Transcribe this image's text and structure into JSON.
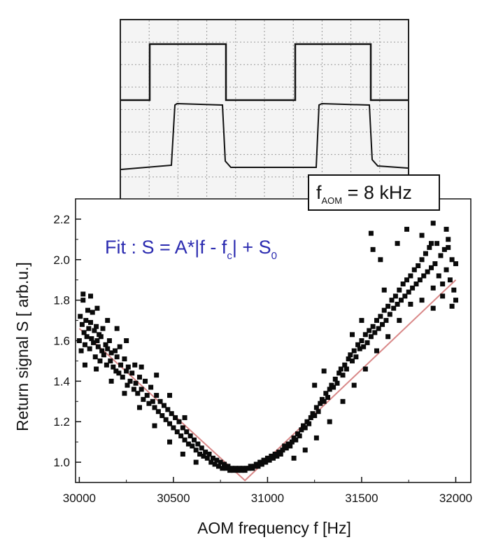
{
  "chart_data": {
    "type": "scatter",
    "xlabel": "AOM frequency f  [Hz]",
    "ylabel": "Return signal S   [ arb.u.]",
    "xlim": [
      29980,
      32080
    ],
    "ylim": [
      0.9,
      2.3
    ],
    "x_ticks": [
      30000,
      30500,
      31000,
      31500,
      32000
    ],
    "y_ticks": [
      1.0,
      1.2,
      1.4,
      1.6,
      1.8,
      2.0,
      2.2
    ],
    "x_tick_labels": [
      "30000",
      "30500",
      "31000",
      "31500",
      "32000"
    ],
    "y_tick_labels": [
      "1.0",
      "1.2",
      "1.4",
      "1.6",
      "1.8",
      "2.0",
      "2.2"
    ],
    "marker_color": "#0a0a0a",
    "fit_color": "#d98888",
    "fit": {
      "label_main": "Fit : S = A*|f - f",
      "label_sub": "c",
      "label_rest": "| + S",
      "label_sub2": "0",
      "center_f": 30880,
      "S0": 0.91,
      "left_end": {
        "x": 30000,
        "y": 1.66
      },
      "right_end": {
        "x": 32000,
        "y": 1.9
      }
    },
    "series": [
      {
        "points": [
          [
            30000,
            1.6
          ],
          [
            30005,
            1.72
          ],
          [
            30010,
            1.55
          ],
          [
            30015,
            1.68
          ],
          [
            30020,
            1.8
          ],
          [
            30025,
            1.64
          ],
          [
            30030,
            1.58
          ],
          [
            30035,
            1.7
          ],
          [
            30040,
            1.62
          ],
          [
            30045,
            1.75
          ],
          [
            30050,
            1.66
          ],
          [
            30055,
            1.56
          ],
          [
            30060,
            1.69
          ],
          [
            30065,
            1.61
          ],
          [
            30070,
            1.74
          ],
          [
            30075,
            1.59
          ],
          [
            30080,
            1.65
          ],
          [
            30085,
            1.52
          ],
          [
            30090,
            1.67
          ],
          [
            30095,
            1.6
          ],
          [
            30100,
            1.57
          ],
          [
            30105,
            1.63
          ],
          [
            30110,
            1.5
          ],
          [
            30115,
            1.62
          ],
          [
            30120,
            1.55
          ],
          [
            30125,
            1.66
          ],
          [
            30130,
            1.53
          ],
          [
            30140,
            1.58
          ],
          [
            30145,
            1.48
          ],
          [
            30150,
            1.56
          ],
          [
            30160,
            1.6
          ],
          [
            30165,
            1.5
          ],
          [
            30170,
            1.54
          ],
          [
            30180,
            1.47
          ],
          [
            30190,
            1.55
          ],
          [
            30195,
            1.45
          ],
          [
            30200,
            1.52
          ],
          [
            30210,
            1.44
          ],
          [
            30215,
            1.57
          ],
          [
            30220,
            1.48
          ],
          [
            30230,
            1.42
          ],
          [
            30240,
            1.51
          ],
          [
            30250,
            1.45
          ],
          [
            30255,
            1.38
          ],
          [
            30260,
            1.47
          ],
          [
            30270,
            1.4
          ],
          [
            30280,
            1.44
          ],
          [
            30290,
            1.36
          ],
          [
            30295,
            1.48
          ],
          [
            30300,
            1.39
          ],
          [
            30310,
            1.34
          ],
          [
            30320,
            1.42
          ],
          [
            30330,
            1.36
          ],
          [
            30340,
            1.31
          ],
          [
            30350,
            1.4
          ],
          [
            30360,
            1.33
          ],
          [
            30370,
            1.29
          ],
          [
            30380,
            1.37
          ],
          [
            30390,
            1.3
          ],
          [
            30400,
            1.27
          ],
          [
            30410,
            1.33
          ],
          [
            30420,
            1.25
          ],
          [
            30430,
            1.3
          ],
          [
            30440,
            1.23
          ],
          [
            30450,
            1.28
          ],
          [
            30460,
            1.21
          ],
          [
            30470,
            1.26
          ],
          [
            30480,
            1.19
          ],
          [
            30490,
            1.24
          ],
          [
            30500,
            1.17
          ],
          [
            30510,
            1.22
          ],
          [
            30520,
            1.15
          ],
          [
            30530,
            1.2
          ],
          [
            30540,
            1.13
          ],
          [
            30550,
            1.17
          ],
          [
            30560,
            1.11
          ],
          [
            30570,
            1.15
          ],
          [
            30580,
            1.09
          ],
          [
            30590,
            1.13
          ],
          [
            30600,
            1.08
          ],
          [
            30610,
            1.11
          ],
          [
            30620,
            1.06
          ],
          [
            30630,
            1.09
          ],
          [
            30640,
            1.04
          ],
          [
            30650,
            1.07
          ],
          [
            30660,
            1.03
          ],
          [
            30670,
            1.05
          ],
          [
            30680,
            1.02
          ],
          [
            30690,
            1.04
          ],
          [
            30700,
            1.0
          ],
          [
            30710,
            1.02
          ],
          [
            30720,
            0.99
          ],
          [
            30730,
            1.01
          ],
          [
            30740,
            0.98
          ],
          [
            30750,
            1.0
          ],
          [
            30760,
            0.97
          ],
          [
            30770,
            0.99
          ],
          [
            30780,
            0.97
          ],
          [
            30790,
            0.98
          ],
          [
            30800,
            0.96
          ],
          [
            30810,
            0.97
          ],
          [
            30820,
            0.96
          ],
          [
            30830,
            0.97
          ],
          [
            30840,
            0.96
          ],
          [
            30850,
            0.97
          ],
          [
            30860,
            0.96
          ],
          [
            30870,
            0.97
          ],
          [
            30880,
            0.96
          ],
          [
            30890,
            0.97
          ],
          [
            30900,
            0.97
          ],
          [
            30910,
            0.98
          ],
          [
            30920,
            0.97
          ],
          [
            30930,
            0.98
          ],
          [
            30940,
            0.99
          ],
          [
            30950,
            0.98
          ],
          [
            30960,
            1.0
          ],
          [
            30970,
            0.99
          ],
          [
            30980,
            1.01
          ],
          [
            30990,
            1.0
          ],
          [
            31000,
            1.02
          ],
          [
            31010,
            1.01
          ],
          [
            31020,
            1.03
          ],
          [
            31030,
            1.02
          ],
          [
            31040,
            1.04
          ],
          [
            31050,
            1.03
          ],
          [
            31060,
            1.05
          ],
          [
            31070,
            1.04
          ],
          [
            31080,
            1.06
          ],
          [
            31090,
            1.08
          ],
          [
            31100,
            1.07
          ],
          [
            31110,
            1.09
          ],
          [
            31120,
            1.08
          ],
          [
            31130,
            1.1
          ],
          [
            31140,
            1.12
          ],
          [
            31150,
            1.11
          ],
          [
            31160,
            1.14
          ],
          [
            31170,
            1.13
          ],
          [
            31180,
            1.16
          ],
          [
            31190,
            1.18
          ],
          [
            31200,
            1.17
          ],
          [
            31210,
            1.2
          ],
          [
            31220,
            1.19
          ],
          [
            31230,
            1.22
          ],
          [
            31240,
            1.24
          ],
          [
            31250,
            1.23
          ],
          [
            31260,
            1.27
          ],
          [
            31270,
            1.25
          ],
          [
            31280,
            1.29
          ],
          [
            31290,
            1.31
          ],
          [
            31300,
            1.3
          ],
          [
            31310,
            1.34
          ],
          [
            31320,
            1.32
          ],
          [
            31330,
            1.36
          ],
          [
            31340,
            1.38
          ],
          [
            31350,
            1.37
          ],
          [
            31360,
            1.41
          ],
          [
            31370,
            1.39
          ],
          [
            31380,
            1.44
          ],
          [
            31390,
            1.46
          ],
          [
            31400,
            1.43
          ],
          [
            31410,
            1.48
          ],
          [
            31420,
            1.46
          ],
          [
            31430,
            1.51
          ],
          [
            31440,
            1.53
          ],
          [
            31450,
            1.5
          ],
          [
            31460,
            1.55
          ],
          [
            31470,
            1.52
          ],
          [
            31480,
            1.58
          ],
          [
            31490,
            1.56
          ],
          [
            31500,
            1.6
          ],
          [
            31510,
            1.57
          ],
          [
            31520,
            1.63
          ],
          [
            31530,
            1.59
          ],
          [
            31540,
            1.65
          ],
          [
            31550,
            1.62
          ],
          [
            31560,
            1.67
          ],
          [
            31570,
            1.64
          ],
          [
            31580,
            1.7
          ],
          [
            31590,
            1.66
          ],
          [
            31600,
            1.72
          ],
          [
            31610,
            1.68
          ],
          [
            31620,
            1.75
          ],
          [
            31630,
            1.7
          ],
          [
            31640,
            1.77
          ],
          [
            31650,
            1.73
          ],
          [
            31660,
            1.8
          ],
          [
            31670,
            1.76
          ],
          [
            31680,
            1.82
          ],
          [
            31690,
            1.78
          ],
          [
            31700,
            1.85
          ],
          [
            31710,
            1.8
          ],
          [
            31720,
            1.88
          ],
          [
            31730,
            1.82
          ],
          [
            31740,
            1.9
          ],
          [
            31750,
            1.84
          ],
          [
            31760,
            1.92
          ],
          [
            31770,
            1.86
          ],
          [
            31780,
            1.95
          ],
          [
            31790,
            1.88
          ],
          [
            31800,
            1.97
          ],
          [
            31810,
            1.9
          ],
          [
            31820,
            2.0
          ],
          [
            31830,
            1.92
          ],
          [
            31840,
            2.03
          ],
          [
            31850,
            1.94
          ],
          [
            31860,
            2.06
          ],
          [
            31870,
            1.96
          ],
          [
            31880,
            1.86
          ],
          [
            31890,
            1.98
          ],
          [
            31900,
            2.08
          ],
          [
            31910,
            1.92
          ],
          [
            31920,
            2.02
          ],
          [
            31930,
            1.88
          ],
          [
            31940,
            2.05
          ],
          [
            31950,
            1.95
          ],
          [
            31960,
            2.1
          ],
          [
            31970,
            1.9
          ],
          [
            31980,
            2.0
          ],
          [
            31990,
            1.85
          ],
          [
            32000,
            1.98
          ],
          [
            31550,
            2.13
          ],
          [
            31560,
            2.05
          ],
          [
            31600,
            2.0
          ],
          [
            31690,
            2.08
          ],
          [
            31740,
            2.15
          ],
          [
            31820,
            2.12
          ],
          [
            31870,
            2.08
          ],
          [
            31880,
            2.18
          ],
          [
            31950,
            2.15
          ],
          [
            31960,
            2.06
          ],
          [
            30020,
            1.83
          ],
          [
            30060,
            1.82
          ],
          [
            30095,
            1.76
          ],
          [
            30150,
            1.7
          ],
          [
            30200,
            1.66
          ],
          [
            30250,
            1.6
          ],
          [
            30330,
            1.47
          ],
          [
            30410,
            1.43
          ],
          [
            30480,
            1.33
          ],
          [
            30560,
            1.22
          ],
          [
            30030,
            1.48
          ],
          [
            30090,
            1.46
          ],
          [
            30170,
            1.4
          ],
          [
            30240,
            1.34
          ],
          [
            30320,
            1.27
          ],
          [
            30400,
            1.18
          ],
          [
            30480,
            1.1
          ],
          [
            30550,
            1.04
          ],
          [
            30620,
            1.0
          ],
          [
            31140,
            1.02
          ],
          [
            31200,
            1.06
          ],
          [
            31260,
            1.12
          ],
          [
            31330,
            1.2
          ],
          [
            31400,
            1.3
          ],
          [
            31460,
            1.38
          ],
          [
            31520,
            1.46
          ],
          [
            31580,
            1.55
          ],
          [
            31640,
            1.62
          ],
          [
            31700,
            1.7
          ],
          [
            31760,
            1.78
          ],
          [
            31820,
            1.8
          ],
          [
            31880,
            1.76
          ],
          [
            31930,
            1.82
          ],
          [
            31980,
            1.77
          ],
          [
            32000,
            1.8
          ],
          [
            31300,
            1.45
          ],
          [
            31250,
            1.38
          ],
          [
            31450,
            1.63
          ],
          [
            31500,
            1.7
          ],
          [
            31620,
            1.85
          ]
        ]
      }
    ]
  },
  "inset": {
    "label_f": "f",
    "label_sub": "AOM",
    "label_value": " = 8 kHz"
  }
}
